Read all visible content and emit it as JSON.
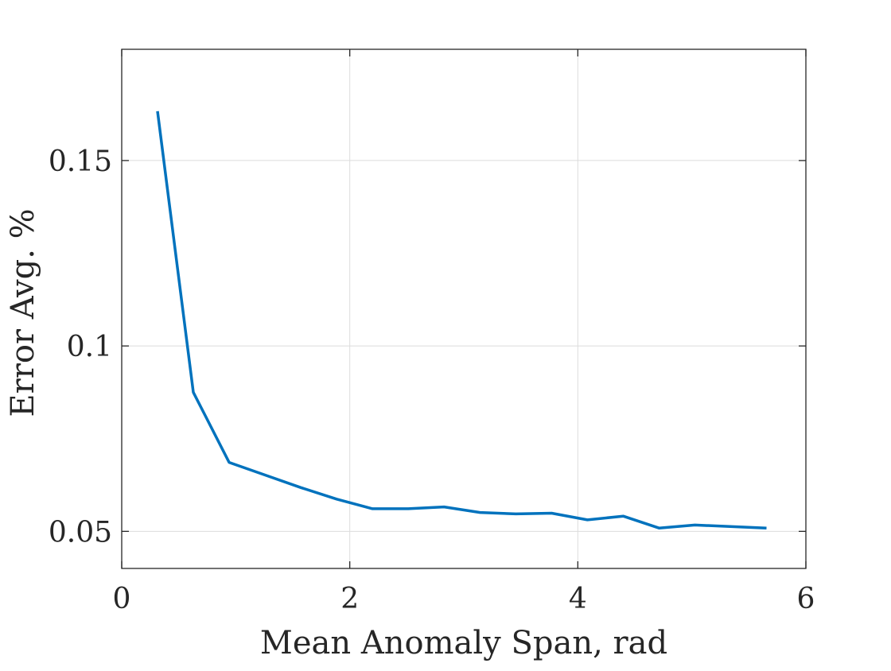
{
  "chart_data": {
    "type": "line",
    "title": "",
    "xlabel": "Mean Anomaly Span, rad",
    "ylabel": "Error Avg. %",
    "xlim": [
      0,
      6
    ],
    "ylim": [
      0.04,
      0.18
    ],
    "xticks": [
      0,
      2,
      4,
      6
    ],
    "xtick_labels": [
      "0",
      "2",
      "4",
      "6"
    ],
    "yticks": [
      0.05,
      0.1,
      0.15
    ],
    "ytick_labels": [
      "0.05",
      "0.1",
      "0.15"
    ],
    "grid": true,
    "legend": "none",
    "series": [
      {
        "color": "#0072BD",
        "x": [
          0.314,
          0.628,
          0.942,
          1.257,
          1.571,
          1.885,
          2.199,
          2.513,
          2.827,
          3.142,
          3.456,
          3.77,
          4.084,
          4.398,
          4.712,
          5.027,
          5.655
        ],
        "y": [
          0.1633,
          0.0875,
          0.0686,
          0.0652,
          0.0618,
          0.0587,
          0.0561,
          0.0561,
          0.0566,
          0.0551,
          0.0547,
          0.0549,
          0.0531,
          0.0541,
          0.0509,
          0.0517,
          0.0509
        ]
      }
    ]
  }
}
